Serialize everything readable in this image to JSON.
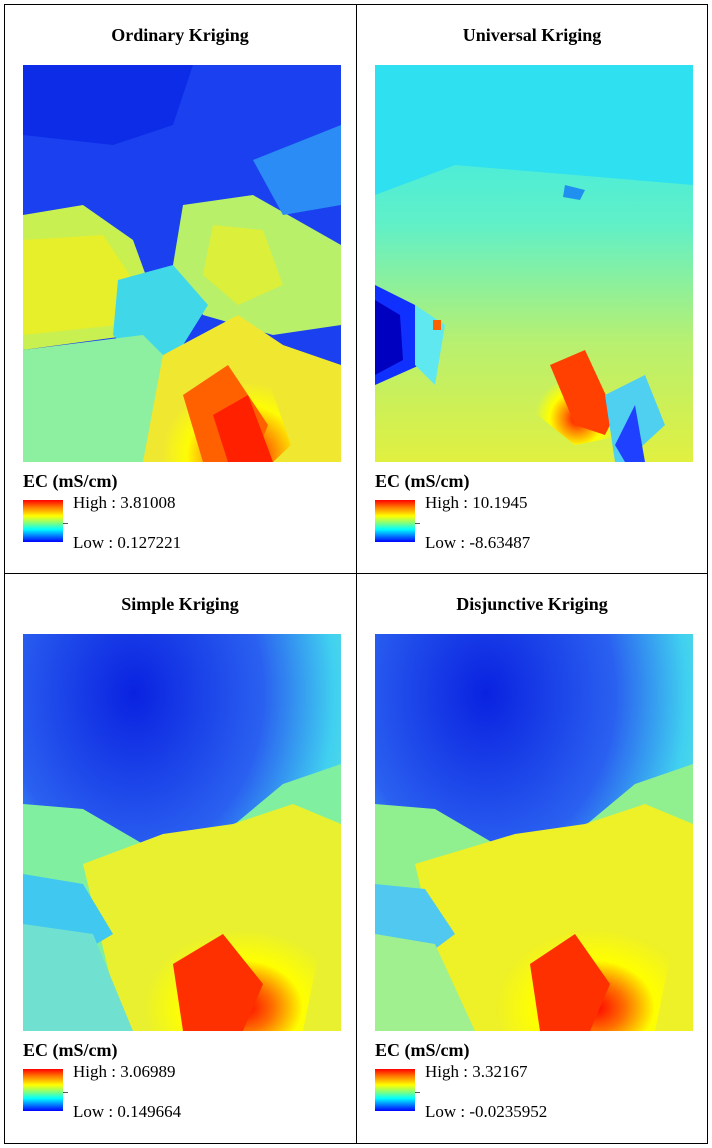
{
  "panels": [
    {
      "title": "Ordinary Kriging",
      "legend_title": "EC (mS/cm)",
      "high": "High : 3.81008",
      "low": "Low : 0.127221"
    },
    {
      "title": "Universal Kriging",
      "legend_title": "EC (mS/cm)",
      "high": "High : 10.1945",
      "low": "Low : -8.63487"
    },
    {
      "title": "Simple Kriging",
      "legend_title": "EC (mS/cm)",
      "high": "High : 3.06989",
      "low": "Low : 0.149664"
    },
    {
      "title": "Disjunctive Kriging",
      "legend_title": "EC (mS/cm)",
      "high": "High : 3.32167",
      "low": "Low : -0.0235952"
    }
  ],
  "colors": {
    "high": "#ff0000",
    "mid": "#ffff00",
    "low": "#0000ff"
  }
}
